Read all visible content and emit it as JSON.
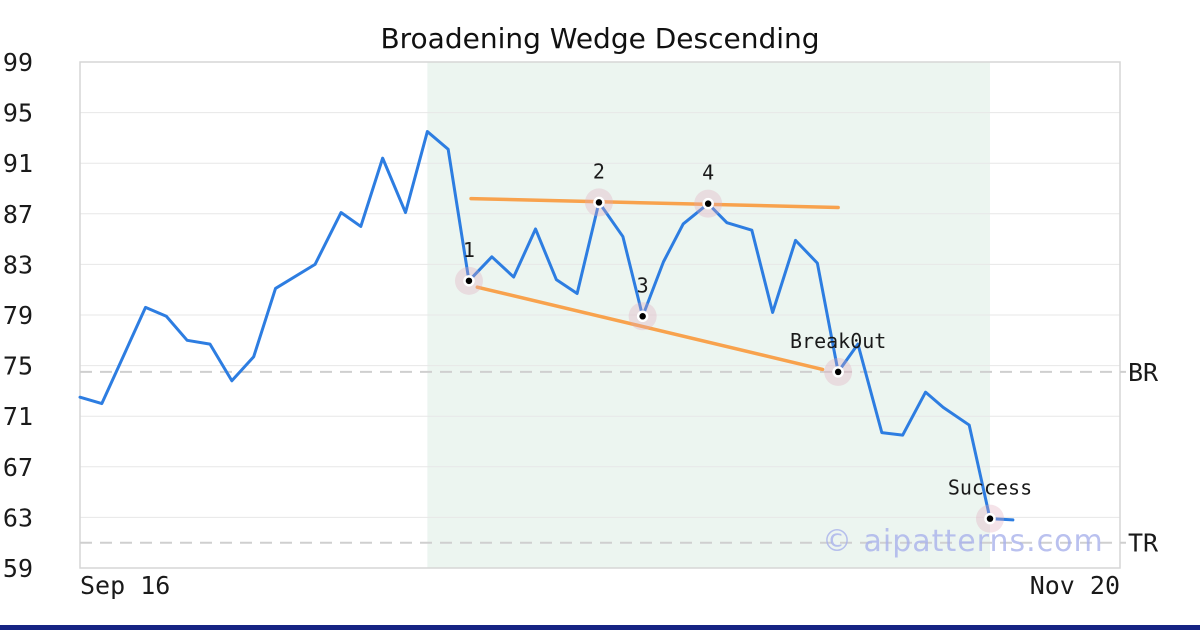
{
  "title": "Broadening Wedge Descending",
  "watermark": "© aipatterns.com",
  "chart_data": {
    "type": "line",
    "title": "Broadening Wedge Descending",
    "ylim": [
      59,
      99
    ],
    "y_ticks": [
      99,
      95,
      91,
      87,
      83,
      79,
      75,
      71,
      67,
      63,
      59
    ],
    "x_tick_labels": [
      {
        "text": "Sep 16",
        "anchor": "start"
      },
      {
        "text": "Nov 20",
        "anchor": "end"
      }
    ],
    "grid": "horizontal",
    "legend": "none",
    "pattern_zone": {
      "x_from": 0.334,
      "x_to": 0.875
    },
    "series": [
      {
        "name": "price",
        "points": [
          [
            0.0,
            72.5
          ],
          [
            0.021,
            72.0
          ],
          [
            0.063,
            79.6
          ],
          [
            0.083,
            78.9
          ],
          [
            0.103,
            77.0
          ],
          [
            0.125,
            76.7
          ],
          [
            0.146,
            73.8
          ],
          [
            0.167,
            75.7
          ],
          [
            0.188,
            81.1
          ],
          [
            0.226,
            83.0
          ],
          [
            0.251,
            87.1
          ],
          [
            0.27,
            86.0
          ],
          [
            0.291,
            91.4
          ],
          [
            0.313,
            87.1
          ],
          [
            0.334,
            93.5
          ],
          [
            0.354,
            92.1
          ],
          [
            0.374,
            81.7
          ],
          [
            0.396,
            83.6
          ],
          [
            0.417,
            82.0
          ],
          [
            0.438,
            85.8
          ],
          [
            0.458,
            81.8
          ],
          [
            0.478,
            80.7
          ],
          [
            0.499,
            87.9
          ],
          [
            0.522,
            85.2
          ],
          [
            0.541,
            78.9
          ],
          [
            0.561,
            83.2
          ],
          [
            0.58,
            86.2
          ],
          [
            0.604,
            87.8
          ],
          [
            0.622,
            86.3
          ],
          [
            0.646,
            85.7
          ],
          [
            0.666,
            79.2
          ],
          [
            0.688,
            84.9
          ],
          [
            0.709,
            83.1
          ],
          [
            0.729,
            74.5
          ],
          [
            0.748,
            76.7
          ],
          [
            0.771,
            69.7
          ],
          [
            0.791,
            69.5
          ],
          [
            0.813,
            72.9
          ],
          [
            0.83,
            71.7
          ],
          [
            0.855,
            70.3
          ],
          [
            0.875,
            62.9
          ],
          [
            0.897,
            62.8
          ]
        ]
      }
    ],
    "markers": [
      {
        "label": "1",
        "x": 0.374,
        "value": 81.7
      },
      {
        "label": "2",
        "x": 0.499,
        "value": 87.9
      },
      {
        "label": "3",
        "x": 0.541,
        "value": 78.9
      },
      {
        "label": "4",
        "x": 0.604,
        "value": 87.8
      },
      {
        "label": "Break0ut",
        "x": 0.729,
        "value": 74.5
      },
      {
        "label": "Success",
        "x": 0.875,
        "value": 62.9
      }
    ],
    "trendlines": [
      {
        "name": "upper",
        "from": [
          0.376,
          88.2
        ],
        "to": [
          0.729,
          87.5
        ]
      },
      {
        "name": "lower",
        "from": [
          0.382,
          81.2
        ],
        "to": [
          0.714,
          74.7
        ]
      }
    ],
    "levels": [
      {
        "label": "BR",
        "value": 74.5
      },
      {
        "label": "TR",
        "value": 61.0
      }
    ]
  },
  "colors": {
    "price_line": "#2d7de1",
    "trendline": "#f8a24d",
    "pattern_zone": "#ecf5f0",
    "grid": "#e7e7e7",
    "level_dash": "#cfcfcf",
    "plot_border": "#d6d6d6",
    "marker_halo": "#e0a8bc",
    "marker_dot": "#000000",
    "text": "#1a1a1a",
    "watermark": "#a9b2ec",
    "bottom_bar": "#152383"
  }
}
